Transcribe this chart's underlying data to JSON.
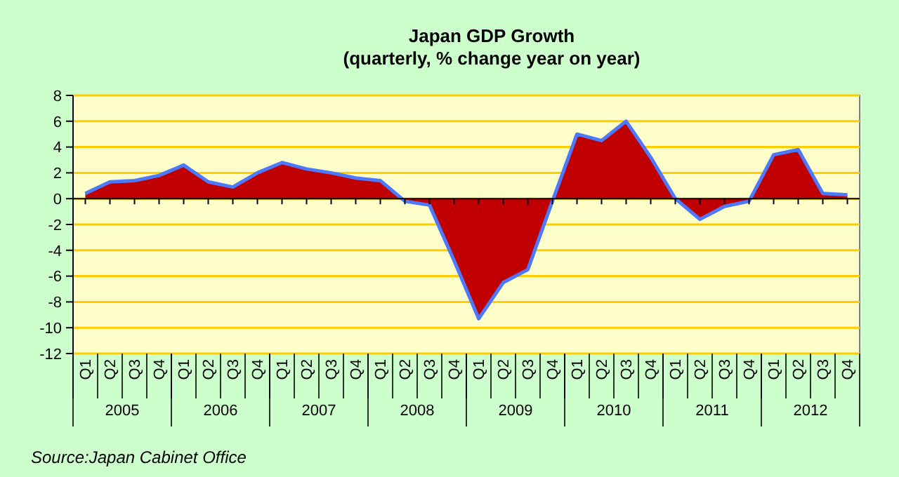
{
  "chart_data": {
    "type": "area",
    "title": "Japan GDP Growth",
    "subtitle": "(quarterly, % change year on year)",
    "categories": [
      "Q1",
      "Q2",
      "Q3",
      "Q4",
      "Q1",
      "Q2",
      "Q3",
      "Q4",
      "Q1",
      "Q2",
      "Q3",
      "Q4",
      "Q1",
      "Q2",
      "Q3",
      "Q4",
      "Q1",
      "Q2",
      "Q3",
      "Q4",
      "Q1",
      "Q2",
      "Q3",
      "Q4",
      "Q1",
      "Q2",
      "Q3",
      "Q4",
      "Q1",
      "Q2",
      "Q3",
      "Q4"
    ],
    "series": [
      {
        "color": "#c00000",
        "values": [
          0.4,
          1.3,
          1.4,
          1.8,
          2.6,
          1.3,
          0.9,
          2.0,
          2.8,
          2.3,
          2.0,
          1.6,
          1.4,
          -0.2,
          -0.5,
          -4.8,
          -9.3,
          -6.5,
          -5.5,
          -0.2,
          5.0,
          4.5,
          6.0,
          3.2,
          0.0,
          -1.6,
          -0.6,
          -0.2,
          3.4,
          3.8,
          0.4,
          0.3
        ]
      }
    ],
    "ylim": [
      -12,
      8
    ],
    "yticks": [
      -12,
      -10,
      -8,
      -6,
      -4,
      -2,
      0,
      2,
      4,
      6,
      8
    ],
    "grid": "y",
    "annotations": [
      "2005",
      "2006",
      "2007",
      "2008",
      "2009",
      "2010",
      "2011",
      "2012",
      "Source:Japan Cabinet Office"
    ]
  }
}
